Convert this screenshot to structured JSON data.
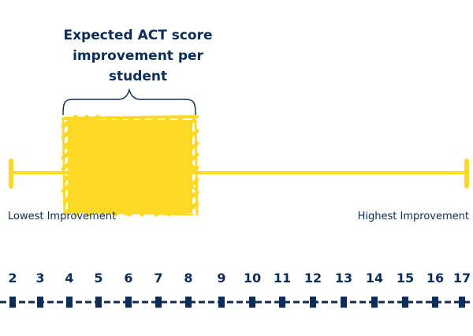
{
  "title": "Expected ACT score improvement per student",
  "labels": {
    "low": "Lowest Improvement",
    "high": "Highest Improvement"
  },
  "scale": {
    "ticks": [
      "2",
      "3",
      "4",
      "5",
      "6",
      "7",
      "8",
      "9",
      "10",
      "11",
      "12",
      "13",
      "14",
      "15",
      "16",
      "17"
    ],
    "range_highlight": {
      "from": 4,
      "to": 8
    }
  },
  "colors": {
    "navy": "#0b2d57",
    "yellow": "#fcd925"
  }
}
